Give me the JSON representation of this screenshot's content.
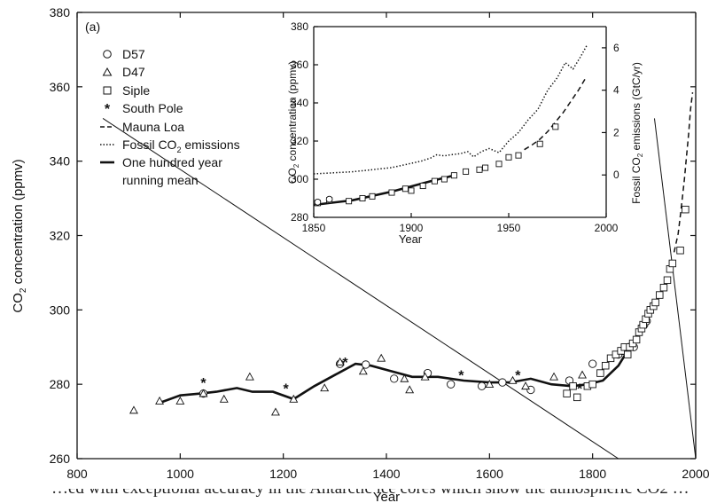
{
  "chart_data": [
    {
      "type": "scatter",
      "panel_label": "(a)",
      "xlabel": "Year",
      "ylabel_parts": [
        "CO",
        "2",
        " concentration (ppmv)"
      ],
      "xlim": [
        800,
        2000
      ],
      "ylim": [
        260,
        380
      ],
      "xticks": [
        800,
        1000,
        1200,
        1400,
        1600,
        1800,
        2000
      ],
      "yticks": [
        260,
        280,
        300,
        320,
        340,
        360,
        380
      ],
      "legend": {
        "placement": "top-left",
        "entries": [
          {
            "key": "d57",
            "label": "D57",
            "marker": "circle"
          },
          {
            "key": "d47",
            "label": "D47",
            "marker": "triangle"
          },
          {
            "key": "siple",
            "label": "Siple",
            "marker": "square"
          },
          {
            "key": "southpole",
            "label": "South Pole",
            "marker": "star"
          },
          {
            "key": "maunaloa",
            "label": "Mauna Loa",
            "marker": "dashed-line"
          },
          {
            "key": "fossil",
            "label_parts": [
              "Fossil CO",
              "2",
              " emissions"
            ],
            "marker": "dotted-line"
          },
          {
            "key": "mean",
            "label_lines": [
              "One hundred year",
              "running mean"
            ],
            "marker": "solid-line"
          }
        ]
      },
      "series": [
        {
          "name": "D57",
          "marker": "circle",
          "x": [
            1045,
            1310,
            1360,
            1415,
            1480,
            1525,
            1585,
            1625,
            1680,
            1755,
            1800,
            1850,
            1858,
            1870,
            1880,
            1900,
            1905
          ],
          "y": [
            277.5,
            285.5,
            285.3,
            281.5,
            283,
            280,
            279.5,
            280.5,
            278.5,
            281,
            285.5,
            288,
            289,
            290,
            290,
            296,
            297
          ]
        },
        {
          "name": "D47",
          "marker": "triangle",
          "x": [
            910,
            960,
            1000,
            1045,
            1085,
            1135,
            1185,
            1220,
            1280,
            1310,
            1355,
            1390,
            1435,
            1445,
            1475,
            1600,
            1645,
            1670,
            1725,
            1780
          ],
          "y": [
            273,
            275.5,
            275.5,
            277.5,
            276,
            282,
            272.5,
            276,
            279,
            286,
            283.5,
            287,
            281.5,
            278.5,
            282,
            280,
            281,
            279.5,
            282,
            282.5
          ]
        },
        {
          "name": "Siple",
          "marker": "square",
          "x": [
            1750,
            1762,
            1770,
            1790,
            1800,
            1815,
            1825,
            1835,
            1845,
            1855,
            1862,
            1868,
            1872,
            1878,
            1885,
            1890,
            1895,
            1898,
            1903,
            1908,
            1912,
            1918,
            1922,
            1930,
            1938,
            1945,
            1950,
            1955,
            1970,
            1980
          ],
          "y": [
            277.5,
            279.5,
            276.5,
            279.5,
            280,
            283,
            285,
            287,
            288,
            289,
            290,
            288,
            290,
            291,
            292,
            294,
            295,
            296,
            297.5,
            299,
            300,
            301,
            302,
            304,
            306,
            308,
            311,
            312.5,
            316,
            327
          ]
        },
        {
          "name": "South Pole",
          "marker": "star",
          "x": [
            1045,
            1205,
            1320,
            1545,
            1655,
            1775
          ],
          "y": [
            280.5,
            279,
            286,
            282.5,
            282.5,
            279
          ]
        },
        {
          "name": "Mauna Loa",
          "line": "dashed",
          "x": [
            1958,
            1962,
            1966,
            1970,
            1974,
            1978,
            1982,
            1986,
            1990,
            1994
          ],
          "y": [
            315.5,
            318,
            320.5,
            325,
            330,
            335,
            341,
            347,
            354,
            358.5
          ]
        },
        {
          "name": "One hundred year running mean",
          "line": "solid",
          "x": [
            960,
            1000,
            1040,
            1070,
            1110,
            1140,
            1180,
            1220,
            1260,
            1300,
            1340,
            1370,
            1410,
            1450,
            1500,
            1550,
            1600,
            1640,
            1680,
            1720,
            1760,
            1790,
            1820,
            1850,
            1870,
            1890,
            1900
          ],
          "y": [
            275,
            277,
            277.5,
            278,
            279,
            278,
            278,
            276,
            279.5,
            282.5,
            285.5,
            285,
            283.5,
            282,
            282,
            281,
            280.5,
            280.5,
            281.5,
            280,
            279.5,
            280,
            281,
            285,
            289.5,
            294,
            297
          ]
        }
      ],
      "zoom_lines": [
        {
          "from": [
            1850,
            260
          ],
          "to": [
            850,
            351.5
          ]
        },
        {
          "from": [
            2000,
            260
          ],
          "to": [
            1920,
            351.5
          ]
        }
      ]
    },
    {
      "type": "line",
      "panel": "inset",
      "xlabel": "Year",
      "ylabel_parts": [
        "CO",
        "2",
        " concentration (ppmv)"
      ],
      "ylabel_right_parts": [
        "Fossil CO",
        "2",
        " emissions (GtC/yr)"
      ],
      "xlim": [
        1850,
        2000
      ],
      "ylim": [
        280,
        380
      ],
      "ylim_right": [
        -2,
        7
      ],
      "xticks": [
        1850,
        1900,
        1950,
        2000
      ],
      "yticks": [
        280,
        300,
        320,
        340,
        360,
        380
      ],
      "yticks_right": [
        0,
        2,
        4,
        6
      ],
      "series": [
        {
          "name": "One hundred year running mean",
          "line": "solid",
          "x": [
            1850,
            1870,
            1890,
            1910,
            1922
          ],
          "y": [
            286.5,
            289,
            293.5,
            299,
            302
          ]
        },
        {
          "name": "Mauna Loa",
          "line": "dashed",
          "x": [
            1958,
            1962,
            1966,
            1970,
            1974,
            1978,
            1982,
            1986,
            1990
          ],
          "y": [
            315.5,
            318,
            321,
            325,
            330,
            335,
            341,
            347,
            354
          ]
        },
        {
          "name": "Fossil CO2 emissions",
          "line": "dotted",
          "axis": "right",
          "x": [
            1850,
            1860,
            1870,
            1880,
            1890,
            1900,
            1905,
            1910,
            1913,
            1917,
            1920,
            1925,
            1929,
            1932,
            1936,
            1940,
            1945,
            1950,
            1955,
            1960,
            1965,
            1970,
            1975,
            1979,
            1983,
            1987,
            1990
          ],
          "y": [
            0.05,
            0.1,
            0.15,
            0.25,
            0.35,
            0.55,
            0.65,
            0.8,
            0.95,
            0.9,
            0.95,
            1.0,
            1.1,
            0.85,
            1.1,
            1.25,
            1.05,
            1.6,
            2.0,
            2.6,
            3.1,
            4.0,
            4.6,
            5.3,
            5.0,
            5.6,
            6.1
          ]
        },
        {
          "name": "Siple",
          "marker": "square",
          "x": [
            1852,
            1858,
            1868,
            1875,
            1880,
            1890,
            1897,
            1900,
            1906,
            1912,
            1917,
            1922,
            1928,
            1935,
            1938,
            1945,
            1950,
            1955,
            1966,
            1974
          ],
          "y": [
            287.5,
            289,
            288.5,
            290,
            291,
            293,
            295,
            294,
            296.5,
            299,
            300,
            302,
            304,
            305,
            306,
            308,
            311.5,
            312.5,
            318.5,
            327.5
          ]
        },
        {
          "name": "D57",
          "marker": "circle",
          "x": [
            1852,
            1858
          ],
          "y": [
            288,
            289.5
          ]
        }
      ]
    }
  ],
  "footer_text": "…ed with exceptional accuracy in the Antarctic ice cores which show the atmospheric CO2 …"
}
